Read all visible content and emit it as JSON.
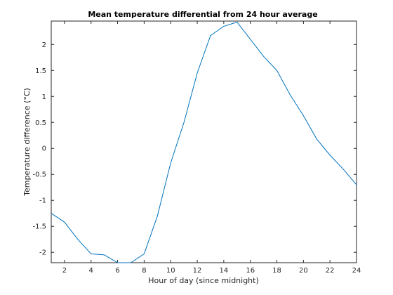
{
  "chart_data": {
    "type": "line",
    "title": "Mean temperature differential from 24 hour average",
    "xlabel": "Hour of day (since midnight)",
    "ylabel": "Temperature difference (°C)",
    "xlim": [
      1,
      24
    ],
    "ylim": [
      -2.2,
      2.45
    ],
    "xticks": [
      2,
      4,
      6,
      8,
      10,
      12,
      14,
      16,
      18,
      20,
      22,
      24
    ],
    "yticks": [
      -2,
      -1.5,
      -1,
      -0.5,
      0,
      0.5,
      1,
      1.5,
      2
    ],
    "grid": false,
    "legend": "none",
    "series": [
      {
        "color": "#0072BD",
        "x": [
          1,
          2,
          3,
          4,
          5,
          6,
          7,
          8,
          9,
          10,
          11,
          12,
          13,
          14,
          15,
          16,
          17,
          18,
          19,
          20,
          21,
          22,
          23,
          24
        ],
        "y": [
          -1.25,
          -1.42,
          -1.75,
          -2.03,
          -2.05,
          -2.2,
          -2.2,
          -2.03,
          -1.3,
          -0.28,
          0.5,
          1.45,
          2.17,
          2.35,
          2.43,
          2.1,
          1.77,
          1.5,
          1.03,
          0.63,
          0.18,
          -0.13,
          -0.4,
          -0.7
        ]
      }
    ]
  }
}
